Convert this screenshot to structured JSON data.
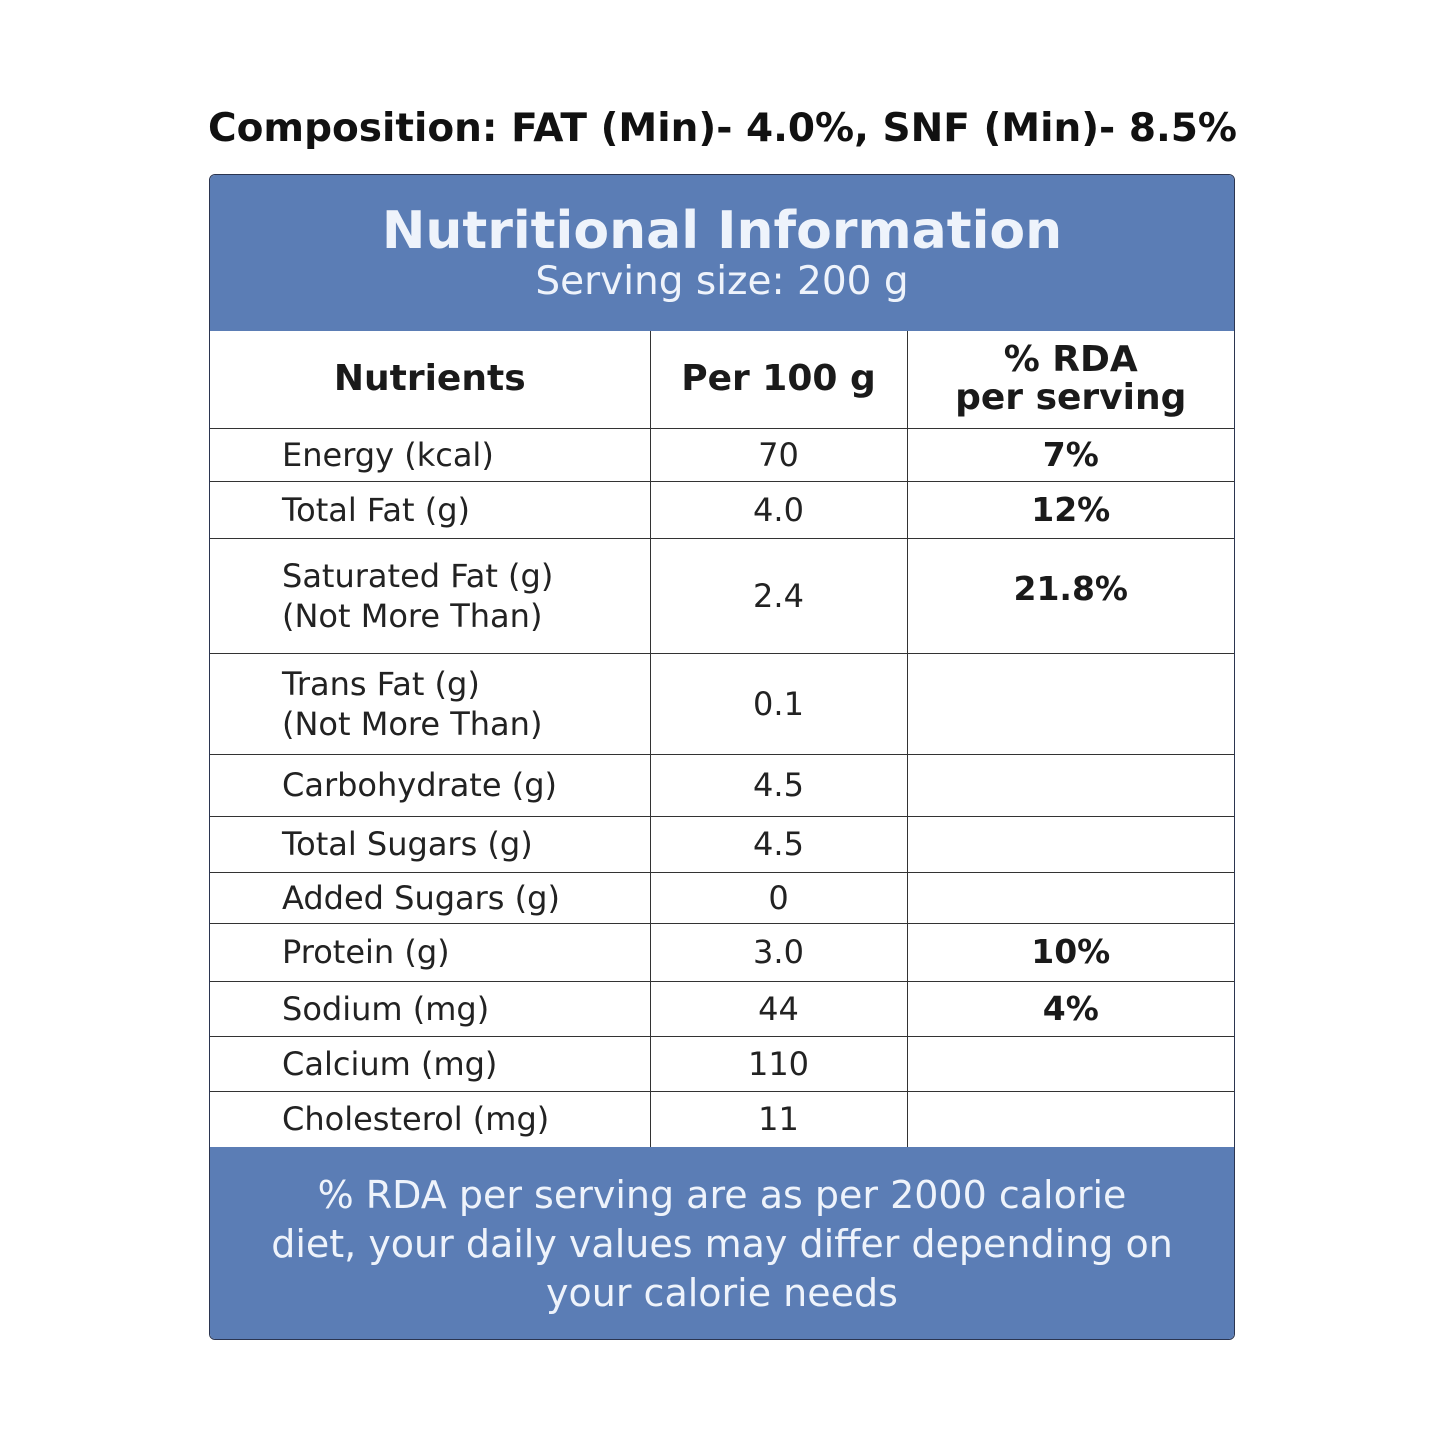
{
  "composition": "Composition: FAT (Min)- 4.0%, SNF (Min)- 8.5%",
  "panel": {
    "title": "Nutritional Information",
    "serving": "Serving size: 200 g"
  },
  "table": {
    "headers": {
      "nutrients": "Nutrients",
      "per100": "Per 100 g",
      "rda_line1": "% RDA",
      "rda_line2": "per serving"
    },
    "rows": [
      {
        "name": "Energy (kcal)",
        "name2": "",
        "per100": "70",
        "rda": "7%"
      },
      {
        "name": "Total Fat (g)",
        "name2": "",
        "per100": "4.0",
        "rda": "12%"
      },
      {
        "name": "Saturated Fat (g)",
        "name2": "(Not More Than)",
        "per100": "2.4",
        "rda": "21.8%"
      },
      {
        "name": "Trans Fat (g)",
        "name2": "(Not More Than)",
        "per100": "0.1",
        "rda": ""
      },
      {
        "name": "Carbohydrate (g)",
        "name2": "",
        "per100": "4.5",
        "rda": ""
      },
      {
        "name": "Total Sugars (g)",
        "name2": "",
        "per100": "4.5",
        "rda": ""
      },
      {
        "name": "Added Sugars (g)",
        "name2": "",
        "per100": "0",
        "rda": ""
      },
      {
        "name": "Protein (g)",
        "name2": "",
        "per100": "3.0",
        "rda": "10%"
      },
      {
        "name": "Sodium (mg)",
        "name2": "",
        "per100": "44",
        "rda": "4%"
      },
      {
        "name": "Calcium (mg)",
        "name2": "",
        "per100": "110",
        "rda": ""
      },
      {
        "name": "Cholesterol (mg)",
        "name2": "",
        "per100": "11",
        "rda": ""
      }
    ]
  },
  "footer": {
    "line1": "% RDA per serving are as per 2000 calorie",
    "line2": "diet, your daily values may differ depending on",
    "line3": "your calorie needs"
  },
  "colors": {
    "panel_blue": "#5b7db5",
    "panel_text": "#eef3fb"
  }
}
